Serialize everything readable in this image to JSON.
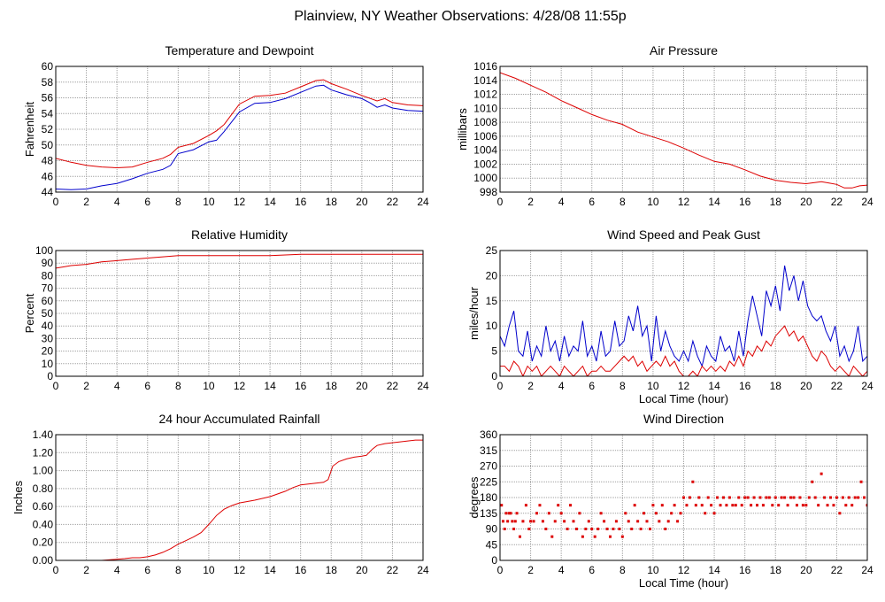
{
  "page": {
    "title": "Plainview, NY Weather Observations: 4/28/08 11:55p"
  },
  "colors": {
    "red": "#dd0000",
    "blue": "#0000cc",
    "grid": "#a0a0a0"
  },
  "chart_data": [
    {
      "id": "temp",
      "type": "line",
      "title": "Temperature and Dewpoint",
      "xlabel": "",
      "ylabel": "Fahrenheit",
      "xlim": [
        0,
        24
      ],
      "ylim": [
        44,
        60
      ],
      "xticks": [
        "0",
        "2",
        "4",
        "6",
        "8",
        "10",
        "12",
        "14",
        "16",
        "18",
        "20",
        "22",
        "24"
      ],
      "yticks": [
        "44",
        "46",
        "48",
        "50",
        "52",
        "54",
        "56",
        "58",
        "60"
      ],
      "grid": true,
      "series": [
        {
          "color": "red",
          "x": [
            0,
            1,
            2,
            3,
            4,
            5,
            6,
            7,
            7.5,
            8,
            9,
            10,
            10.5,
            11,
            12,
            13,
            14,
            15,
            16,
            17,
            17.5,
            18,
            19,
            20,
            21,
            21.5,
            22,
            23,
            24
          ],
          "y": [
            48.3,
            47.8,
            47.4,
            47.2,
            47.1,
            47.2,
            47.8,
            48.3,
            48.8,
            49.7,
            50.2,
            51.2,
            51.8,
            52.6,
            55.2,
            56.2,
            56.3,
            56.6,
            57.4,
            58.2,
            58.3,
            57.8,
            57.1,
            56.3,
            55.6,
            55.9,
            55.4,
            55.1,
            55.0
          ]
        },
        {
          "color": "blue",
          "x": [
            0,
            1,
            2,
            3,
            4,
            5,
            6,
            7,
            7.5,
            8,
            9,
            10,
            10.5,
            11,
            12,
            13,
            14,
            15,
            16,
            17,
            17.5,
            18,
            19,
            20,
            20.5,
            21,
            21.5,
            22,
            23,
            24
          ],
          "y": [
            44.4,
            44.3,
            44.4,
            44.8,
            45.1,
            45.7,
            46.4,
            46.9,
            47.4,
            48.9,
            49.4,
            50.4,
            50.6,
            51.7,
            54.2,
            55.3,
            55.4,
            55.9,
            56.7,
            57.5,
            57.6,
            57.0,
            56.4,
            55.9,
            55.4,
            54.8,
            55.1,
            54.7,
            54.4,
            54.3
          ]
        }
      ]
    },
    {
      "id": "press",
      "type": "line",
      "title": "Air Pressure",
      "xlabel": "",
      "ylabel": "millibars",
      "xlim": [
        0,
        24
      ],
      "ylim": [
        998,
        1016
      ],
      "xticks": [
        "0",
        "2",
        "4",
        "6",
        "8",
        "10",
        "12",
        "14",
        "16",
        "18",
        "20",
        "22",
        "24"
      ],
      "yticks": [
        "998",
        "1000",
        "1002",
        "1004",
        "1006",
        "1008",
        "1010",
        "1012",
        "1014",
        "1016"
      ],
      "grid": true,
      "series": [
        {
          "color": "red",
          "x": [
            0,
            1,
            2,
            3,
            4,
            5,
            6,
            7,
            8,
            9,
            10,
            11,
            12,
            13,
            14,
            15,
            16,
            17,
            18,
            19,
            20,
            21,
            21.5,
            22,
            22.5,
            23,
            23.5,
            24
          ],
          "y": [
            1015.1,
            1014.3,
            1013.3,
            1012.3,
            1011.1,
            1010.1,
            1009.1,
            1008.3,
            1007.7,
            1006.6,
            1005.9,
            1005.2,
            1004.3,
            1003.3,
            1002.4,
            1002.0,
            1001.2,
            1000.3,
            999.7,
            999.4,
            999.2,
            999.5,
            999.3,
            999.1,
            998.6,
            998.6,
            998.9,
            999.0
          ]
        }
      ]
    },
    {
      "id": "rh",
      "type": "line",
      "title": "Relative Humidity",
      "xlabel": "",
      "ylabel": "Percent",
      "xlim": [
        0,
        24
      ],
      "ylim": [
        0,
        100
      ],
      "xticks": [
        "0",
        "2",
        "4",
        "6",
        "8",
        "10",
        "12",
        "14",
        "16",
        "18",
        "20",
        "22",
        "24"
      ],
      "yticks": [
        "0",
        "10",
        "20",
        "30",
        "40",
        "50",
        "60",
        "70",
        "80",
        "90",
        "100"
      ],
      "grid": true,
      "series": [
        {
          "color": "red",
          "x": [
            0,
            0.5,
            1,
            2,
            3,
            4,
            5,
            6,
            7,
            8,
            10,
            12,
            14,
            16,
            18,
            20,
            22,
            24
          ],
          "y": [
            86,
            87,
            88,
            89,
            91,
            92,
            93,
            94,
            95,
            96,
            96,
            96,
            96,
            97,
            97,
            97,
            97,
            97
          ]
        }
      ]
    },
    {
      "id": "wind",
      "type": "line",
      "title": "Wind Speed and Peak Gust",
      "xlabel": "Local Time (hour)",
      "ylabel": "miles/hour",
      "xlim": [
        0,
        24
      ],
      "ylim": [
        0,
        25
      ],
      "xticks": [
        "0",
        "2",
        "4",
        "6",
        "8",
        "10",
        "12",
        "14",
        "16",
        "18",
        "20",
        "22",
        "24"
      ],
      "yticks": [
        "0",
        "5",
        "10",
        "15",
        "20",
        "25"
      ],
      "grid": true,
      "series": [
        {
          "color": "blue",
          "x": [
            0,
            0.3,
            0.6,
            0.9,
            1.2,
            1.5,
            1.8,
            2.1,
            2.4,
            2.7,
            3.0,
            3.3,
            3.6,
            3.9,
            4.2,
            4.5,
            4.8,
            5.1,
            5.4,
            5.7,
            6.0,
            6.3,
            6.6,
            6.9,
            7.2,
            7.5,
            7.8,
            8.1,
            8.4,
            8.7,
            9.0,
            9.3,
            9.6,
            9.9,
            10.2,
            10.5,
            10.8,
            11.1,
            11.4,
            11.7,
            12.0,
            12.3,
            12.6,
            12.9,
            13.2,
            13.5,
            13.8,
            14.1,
            14.4,
            14.7,
            15.0,
            15.3,
            15.6,
            15.9,
            16.2,
            16.5,
            16.8,
            17.1,
            17.4,
            17.7,
            18.0,
            18.3,
            18.6,
            18.9,
            19.2,
            19.5,
            19.8,
            20.1,
            20.4,
            20.7,
            21.0,
            21.3,
            21.6,
            21.9,
            22.2,
            22.5,
            22.8,
            23.1,
            23.4,
            23.7,
            24.0
          ],
          "y": [
            8,
            6,
            10,
            13,
            5,
            4,
            9,
            3,
            6,
            4,
            10,
            5,
            7,
            3,
            8,
            4,
            6,
            5,
            11,
            4,
            6,
            3,
            9,
            4,
            5,
            11,
            6,
            7,
            12,
            9,
            14,
            8,
            10,
            3,
            12,
            5,
            9,
            6,
            4,
            3,
            5,
            3,
            7,
            4,
            2,
            6,
            4,
            3,
            8,
            5,
            6,
            3,
            9,
            4,
            11,
            16,
            12,
            8,
            17,
            14,
            18,
            13,
            22,
            17,
            20,
            15,
            19,
            14,
            12,
            11,
            12,
            9,
            7,
            10,
            4,
            6,
            3,
            5,
            10,
            3,
            4
          ]
        },
        {
          "color": "red",
          "x": [
            0,
            0.3,
            0.6,
            0.9,
            1.2,
            1.5,
            1.8,
            2.1,
            2.4,
            2.7,
            3.0,
            3.3,
            3.6,
            3.9,
            4.2,
            4.5,
            4.8,
            5.1,
            5.4,
            5.7,
            6.0,
            6.3,
            6.6,
            6.9,
            7.2,
            7.5,
            7.8,
            8.1,
            8.4,
            8.7,
            9.0,
            9.3,
            9.6,
            9.9,
            10.2,
            10.5,
            10.8,
            11.1,
            11.4,
            11.7,
            12.0,
            12.3,
            12.6,
            12.9,
            13.2,
            13.5,
            13.8,
            14.1,
            14.4,
            14.7,
            15.0,
            15.3,
            15.6,
            15.9,
            16.2,
            16.5,
            16.8,
            17.1,
            17.4,
            17.7,
            18.0,
            18.3,
            18.6,
            18.9,
            19.2,
            19.5,
            19.8,
            20.1,
            20.4,
            20.7,
            21.0,
            21.3,
            21.6,
            21.9,
            22.2,
            22.5,
            22.8,
            23.1,
            23.4,
            23.7,
            24.0
          ],
          "y": [
            2,
            2,
            1,
            3,
            2,
            0,
            2,
            1,
            2,
            0,
            1,
            2,
            1,
            0,
            2,
            1,
            0,
            1,
            2,
            0,
            1,
            1,
            2,
            1,
            1,
            2,
            3,
            4,
            3,
            4,
            2,
            3,
            1,
            2,
            3,
            2,
            4,
            2,
            3,
            1,
            0,
            0,
            1,
            0,
            2,
            1,
            2,
            1,
            2,
            1,
            3,
            2,
            4,
            2,
            5,
            4,
            6,
            5,
            7,
            6,
            8,
            9,
            10,
            8,
            9,
            7,
            8,
            6,
            4,
            3,
            5,
            4,
            2,
            1,
            2,
            1,
            0,
            2,
            1,
            0,
            1
          ]
        }
      ]
    },
    {
      "id": "rain",
      "type": "line",
      "title": "24 hour Accumulated Rainfall",
      "xlabel": "",
      "ylabel": "Inches",
      "xlim": [
        0,
        24
      ],
      "ylim": [
        0,
        1.4
      ],
      "xticks": [
        "0",
        "2",
        "4",
        "6",
        "8",
        "10",
        "12",
        "14",
        "16",
        "18",
        "20",
        "22",
        "24"
      ],
      "yticks": [
        "0.00",
        "0.20",
        "0.40",
        "0.60",
        "0.80",
        "1.00",
        "1.20",
        "1.40"
      ],
      "grid": true,
      "series": [
        {
          "color": "red",
          "x": [
            0,
            1,
            2,
            3,
            3.8,
            4.5,
            5,
            5.5,
            6,
            6.5,
            7,
            7.5,
            8,
            8.5,
            9,
            9.5,
            10,
            10.5,
            11,
            11.5,
            12,
            13,
            14,
            15,
            15.5,
            16,
            16.5,
            17,
            17.5,
            17.8,
            18.1,
            18.5,
            19,
            19.5,
            20,
            20.3,
            20.7,
            21,
            21.5,
            22,
            22.5,
            23,
            23.5,
            24
          ],
          "y": [
            0.0,
            0.0,
            0.0,
            0.0,
            0.01,
            0.02,
            0.03,
            0.03,
            0.04,
            0.06,
            0.09,
            0.13,
            0.18,
            0.22,
            0.26,
            0.31,
            0.4,
            0.5,
            0.57,
            0.61,
            0.64,
            0.67,
            0.71,
            0.77,
            0.81,
            0.84,
            0.85,
            0.86,
            0.87,
            0.9,
            1.05,
            1.1,
            1.13,
            1.15,
            1.16,
            1.17,
            1.24,
            1.28,
            1.3,
            1.31,
            1.32,
            1.33,
            1.34,
            1.34
          ]
        }
      ]
    },
    {
      "id": "dir",
      "type": "scatter",
      "title": "Wind Direction",
      "xlabel": "Local Time (hour)",
      "ylabel": "degrees",
      "xlim": [
        0,
        24
      ],
      "ylim": [
        0,
        360
      ],
      "xticks": [
        "0",
        "2",
        "4",
        "6",
        "8",
        "10",
        "12",
        "14",
        "16",
        "18",
        "20",
        "22",
        "24"
      ],
      "yticks": [
        "0",
        "45",
        "90",
        "135",
        "180",
        "225",
        "270",
        "315",
        "360"
      ],
      "grid": true,
      "series": [
        {
          "color": "red",
          "x": [
            0.1,
            0.2,
            0.3,
            0.4,
            0.5,
            0.6,
            0.7,
            0.8,
            0.9,
            1.0,
            1.1,
            1.3,
            1.5,
            1.7,
            1.9,
            2.0,
            2.2,
            2.4,
            2.6,
            2.8,
            3.0,
            3.2,
            3.4,
            3.6,
            3.8,
            4.0,
            4.2,
            4.4,
            4.6,
            4.8,
            5.0,
            5.2,
            5.4,
            5.6,
            5.8,
            6.0,
            6.2,
            6.4,
            6.6,
            6.8,
            7.0,
            7.2,
            7.4,
            7.6,
            7.8,
            8.0,
            8.2,
            8.4,
            8.6,
            8.8,
            9.0,
            9.2,
            9.4,
            9.6,
            9.8,
            10.0,
            10.2,
            10.4,
            10.6,
            10.8,
            11.0,
            11.2,
            11.4,
            11.6,
            11.8,
            12.0,
            12.2,
            12.4,
            12.6,
            12.8,
            13.0,
            13.2,
            13.4,
            13.6,
            13.8,
            14.0,
            14.2,
            14.4,
            14.6,
            14.8,
            15.0,
            15.2,
            15.4,
            15.6,
            15.8,
            16.0,
            16.2,
            16.4,
            16.6,
            16.8,
            17.0,
            17.2,
            17.4,
            17.6,
            17.8,
            18.0,
            18.2,
            18.4,
            18.6,
            18.8,
            19.0,
            19.2,
            19.4,
            19.6,
            19.8,
            20.0,
            20.2,
            20.4,
            20.6,
            20.8,
            21.0,
            21.2,
            21.4,
            21.6,
            21.8,
            22.0,
            22.2,
            22.4,
            22.6,
            22.8,
            23.0,
            23.2,
            23.4,
            23.6,
            23.8,
            24.0
          ],
          "y": [
            158,
            112,
            90,
            135,
            112,
            135,
            135,
            112,
            90,
            112,
            135,
            68,
            112,
            158,
            90,
            112,
            112,
            135,
            158,
            112,
            90,
            135,
            68,
            112,
            158,
            135,
            112,
            90,
            158,
            112,
            90,
            135,
            68,
            90,
            112,
            90,
            68,
            90,
            135,
            112,
            90,
            68,
            90,
            112,
            90,
            68,
            135,
            112,
            90,
            158,
            112,
            90,
            135,
            112,
            90,
            158,
            135,
            112,
            158,
            90,
            112,
            135,
            158,
            112,
            135,
            180,
            158,
            180,
            225,
            158,
            180,
            158,
            135,
            180,
            158,
            135,
            180,
            158,
            180,
            158,
            180,
            158,
            158,
            180,
            158,
            180,
            180,
            158,
            180,
            158,
            180,
            158,
            180,
            180,
            158,
            180,
            158,
            180,
            180,
            158,
            180,
            180,
            158,
            180,
            158,
            158,
            180,
            225,
            180,
            158,
            248,
            180,
            158,
            180,
            158,
            180,
            135,
            180,
            158,
            180,
            158,
            180,
            180,
            225,
            180,
            158
          ]
        }
      ]
    }
  ]
}
